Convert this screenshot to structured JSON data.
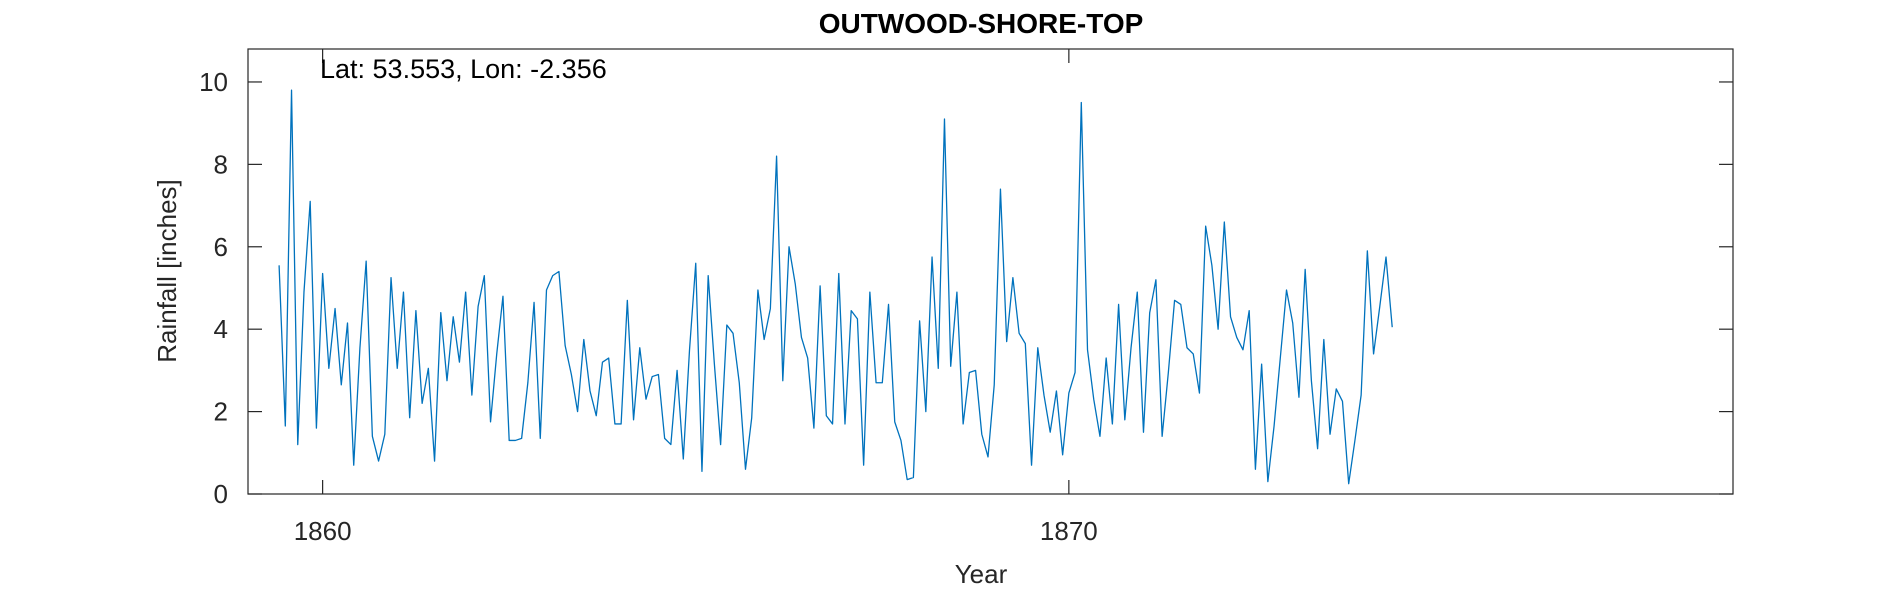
{
  "chart_data": {
    "type": "line",
    "title": "OUTWOOD-SHORE-TOP",
    "annotation": "Lat: 53.553, Lon: -2.356",
    "xlabel": "Year",
    "ylabel": "Rainfall [inches]",
    "xlim": [
      1859.0,
      1878.9
    ],
    "ylim": [
      0,
      10.8
    ],
    "xticks": [
      "1860",
      "1870"
    ],
    "yticks": [
      "0",
      "2",
      "4",
      "6",
      "8",
      "10"
    ],
    "grid": false,
    "colors": {
      "series": "#0072BD",
      "axes": "#262626"
    },
    "series": [
      {
        "x_start": "1859-06",
        "x_step": "1 month",
        "values": [
          5.55,
          1.65,
          9.8,
          1.2,
          4.9,
          7.1,
          1.6,
          5.35,
          3.05,
          4.5,
          2.65,
          4.15,
          0.7,
          3.55,
          5.65,
          1.4,
          0.8,
          1.45,
          5.25,
          3.05,
          4.9,
          1.85,
          4.45,
          2.2,
          3.05,
          0.8,
          4.4,
          2.75,
          4.3,
          3.2,
          4.9,
          2.4,
          4.55,
          5.3,
          1.75,
          3.4,
          4.8,
          1.3,
          1.3,
          1.35,
          2.7,
          4.65,
          1.35,
          4.95,
          5.3,
          5.4,
          3.6,
          2.9,
          2.0,
          3.75,
          2.5,
          1.9,
          3.2,
          3.3,
          1.7,
          1.7,
          4.7,
          1.8,
          3.55,
          2.3,
          2.85,
          2.9,
          1.35,
          1.2,
          3.0,
          0.85,
          3.5,
          5.6,
          0.55,
          5.3,
          3.15,
          1.2,
          4.1,
          3.9,
          2.7,
          0.6,
          1.85,
          4.95,
          3.75,
          4.5,
          8.2,
          2.75,
          6.0,
          5.1,
          3.8,
          3.3,
          1.6,
          5.05,
          1.9,
          1.7,
          5.35,
          1.7,
          4.45,
          4.25,
          0.7,
          4.9,
          2.7,
          2.7,
          4.6,
          1.75,
          1.3,
          0.35,
          0.4,
          4.2,
          2.0,
          5.75,
          3.05,
          9.1,
          3.1,
          4.9,
          1.7,
          2.95,
          3.0,
          1.45,
          0.9,
          2.65,
          7.4,
          3.7,
          5.25,
          3.9,
          3.65,
          0.7,
          3.55,
          2.4,
          1.5,
          2.5,
          0.95,
          2.45,
          2.95,
          9.5,
          3.5,
          2.3,
          1.4,
          3.3,
          1.7,
          4.6,
          1.8,
          3.55,
          4.9,
          1.5,
          4.4,
          5.2,
          1.4,
          2.95,
          4.7,
          4.6,
          3.55,
          3.4,
          2.45,
          6.5,
          5.55,
          4.0,
          6.6,
          4.3,
          3.8,
          3.5,
          4.45,
          0.6,
          3.15,
          0.3,
          1.65,
          3.3,
          4.95,
          4.15,
          2.35,
          5.45,
          2.75,
          1.1,
          3.75,
          1.45,
          2.55,
          2.25,
          0.25,
          1.3,
          2.4,
          5.9,
          3.4,
          4.55,
          5.75,
          4.05
        ]
      }
    ]
  }
}
